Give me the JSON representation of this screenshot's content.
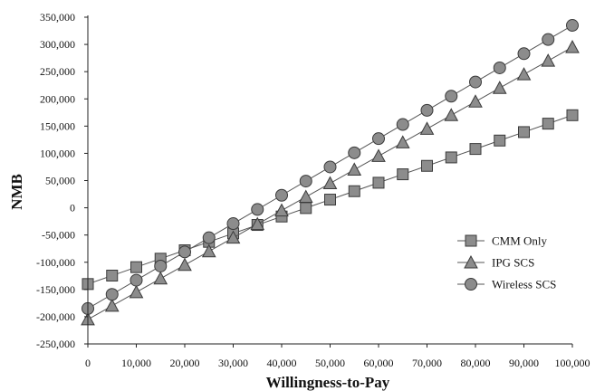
{
  "chart_data": {
    "type": "line",
    "xlabel": "Willingness-to-Pay",
    "ylabel": "NMB",
    "xlim": [
      0,
      100000
    ],
    "ylim": [
      -250000,
      350000
    ],
    "x_ticks": [
      "0",
      "10,000",
      "20,000",
      "30,000",
      "40,000",
      "50,000",
      "60,000",
      "70,000",
      "80,000",
      "90,000",
      "100,000"
    ],
    "y_ticks": [
      "350,000",
      "300,000",
      "250,000",
      "200,000",
      "150,000",
      "100,000",
      "50,000",
      "0",
      "-50,000",
      "-100,000",
      "-150,000",
      "-200,000",
      "-250,000"
    ],
    "grid": false,
    "legend_position": "right",
    "x": [
      0,
      5000,
      10000,
      15000,
      20000,
      25000,
      30000,
      35000,
      40000,
      45000,
      50000,
      55000,
      60000,
      65000,
      70000,
      75000,
      80000,
      85000,
      90000,
      95000,
      100000
    ],
    "series": [
      {
        "name": "CMM Only",
        "marker": "square",
        "values": [
          -140000,
          -124500,
          -109000,
          -93500,
          -78000,
          -62500,
          -47000,
          -31500,
          -16000,
          -500,
          15000,
          30500,
          46000,
          61500,
          77000,
          92500,
          108000,
          123500,
          139000,
          154500,
          170000
        ]
      },
      {
        "name": "IPG SCS",
        "marker": "triangle",
        "values": [
          -205000,
          -180000,
          -155000,
          -130000,
          -105000,
          -80000,
          -55000,
          -30000,
          -5000,
          20000,
          45000,
          70000,
          95000,
          120000,
          145000,
          170000,
          195000,
          220000,
          245000,
          270000,
          295000
        ]
      },
      {
        "name": "Wireless SCS",
        "marker": "circle",
        "values": [
          -185000,
          -159000,
          -133000,
          -107000,
          -81000,
          -55000,
          -29000,
          -3000,
          23000,
          49000,
          75000,
          101000,
          127000,
          153000,
          179000,
          205000,
          231000,
          257000,
          283000,
          309000,
          335000
        ]
      }
    ]
  },
  "colors": {
    "marker_fill": "#8c8c8c",
    "marker_stroke": "#3a3a3a",
    "line": "#555555",
    "axis": "#222222"
  }
}
